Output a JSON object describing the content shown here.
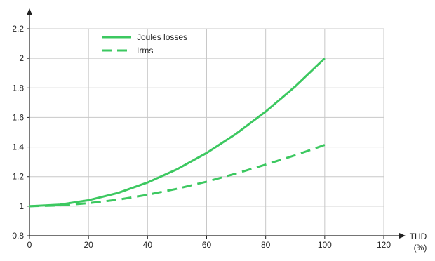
{
  "chart_data": {
    "type": "line",
    "xlabel": "THD",
    "xlabel_unit": "(%)",
    "ylabel": "",
    "xlim": [
      0,
      120
    ],
    "ylim": [
      0.8,
      2.2
    ],
    "x_ticks": [
      0,
      20,
      40,
      60,
      80,
      100,
      120
    ],
    "y_ticks": [
      0.8,
      1,
      1.2,
      1.4,
      1.6,
      1.8,
      2,
      2.2
    ],
    "y_tick_labels": [
      "0.8",
      "1",
      "1.2",
      "1.4",
      "1.6",
      "1.8",
      "2",
      "2.2"
    ],
    "grid": true,
    "legend_position": "top-left",
    "series": [
      {
        "name": "Joules losses",
        "style": "solid",
        "color": "#3cc860",
        "x": [
          0,
          10,
          20,
          30,
          40,
          50,
          60,
          70,
          80,
          90,
          100
        ],
        "y": [
          1.0,
          1.01,
          1.04,
          1.09,
          1.16,
          1.25,
          1.36,
          1.49,
          1.64,
          1.81,
          2.0
        ]
      },
      {
        "name": "Irms",
        "style": "dashed",
        "color": "#3cc860",
        "x": [
          0,
          10,
          20,
          30,
          40,
          50,
          60,
          70,
          80,
          90,
          100
        ],
        "y": [
          1.0,
          1.005,
          1.02,
          1.044,
          1.077,
          1.118,
          1.166,
          1.221,
          1.281,
          1.345,
          1.414
        ]
      }
    ]
  }
}
